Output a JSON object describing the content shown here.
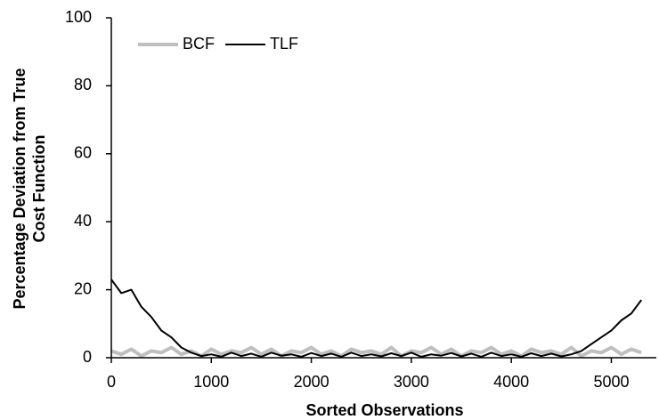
{
  "chart_data": {
    "type": "line",
    "ylabel_lines": [
      "Percentage Deviation from True",
      "Cost Function"
    ],
    "xlabel": "Sorted Observations",
    "x": [
      0,
      100,
      200,
      300,
      400,
      500,
      600,
      700,
      800,
      900,
      1000,
      1100,
      1200,
      1300,
      1400,
      1500,
      1600,
      1700,
      1800,
      1900,
      2000,
      2100,
      2200,
      2300,
      2400,
      2500,
      2600,
      2700,
      2800,
      2900,
      3000,
      3100,
      3200,
      3300,
      3400,
      3500,
      3600,
      3700,
      3800,
      3900,
      4000,
      4100,
      4200,
      4300,
      4400,
      4500,
      4600,
      4700,
      4800,
      4900,
      5000,
      5100,
      5200,
      5300
    ],
    "series": [
      {
        "name": "BCF",
        "color": "#bfbfbf",
        "values": [
          2,
          1,
          2.5,
          0.5,
          2,
          1.5,
          3,
          1,
          2,
          0.5,
          2.5,
          1,
          2,
          1.5,
          3,
          1,
          2.5,
          0.5,
          2,
          1.5,
          3,
          1,
          2,
          0.5,
          2.5,
          1.5,
          2,
          1,
          3,
          0.5,
          2,
          1.5,
          3,
          1,
          2.5,
          0.5,
          2,
          1.5,
          3,
          1,
          2,
          0.5,
          2.5,
          1.5,
          2,
          1,
          3,
          0.5,
          2,
          1.5,
          3,
          1,
          2.5,
          1.5
        ]
      },
      {
        "name": "TLF",
        "color": "#000000",
        "values": [
          23,
          19,
          20,
          15,
          12,
          8,
          6,
          3,
          1.5,
          0.5,
          1,
          0.3,
          1.5,
          0.5,
          1.2,
          0.3,
          1.5,
          0.6,
          1,
          0.3,
          1.4,
          0.5,
          1.2,
          0.3,
          1.5,
          0.5,
          1,
          0.4,
          1.3,
          0.5,
          1.5,
          0.3,
          1,
          0.6,
          1.4,
          0.4,
          1.2,
          0.3,
          1.5,
          0.5,
          1,
          0.3,
          1.3,
          0.5,
          1.2,
          0.4,
          1,
          2,
          4,
          6,
          8,
          11,
          13,
          17
        ]
      }
    ],
    "xlim": [
      0,
      5450
    ],
    "xticks": [
      0,
      1000,
      2000,
      3000,
      4000,
      5000
    ],
    "ylim": [
      0,
      100
    ],
    "yticks": [
      0,
      20,
      40,
      60,
      80,
      100
    ],
    "legend": "top-left"
  }
}
